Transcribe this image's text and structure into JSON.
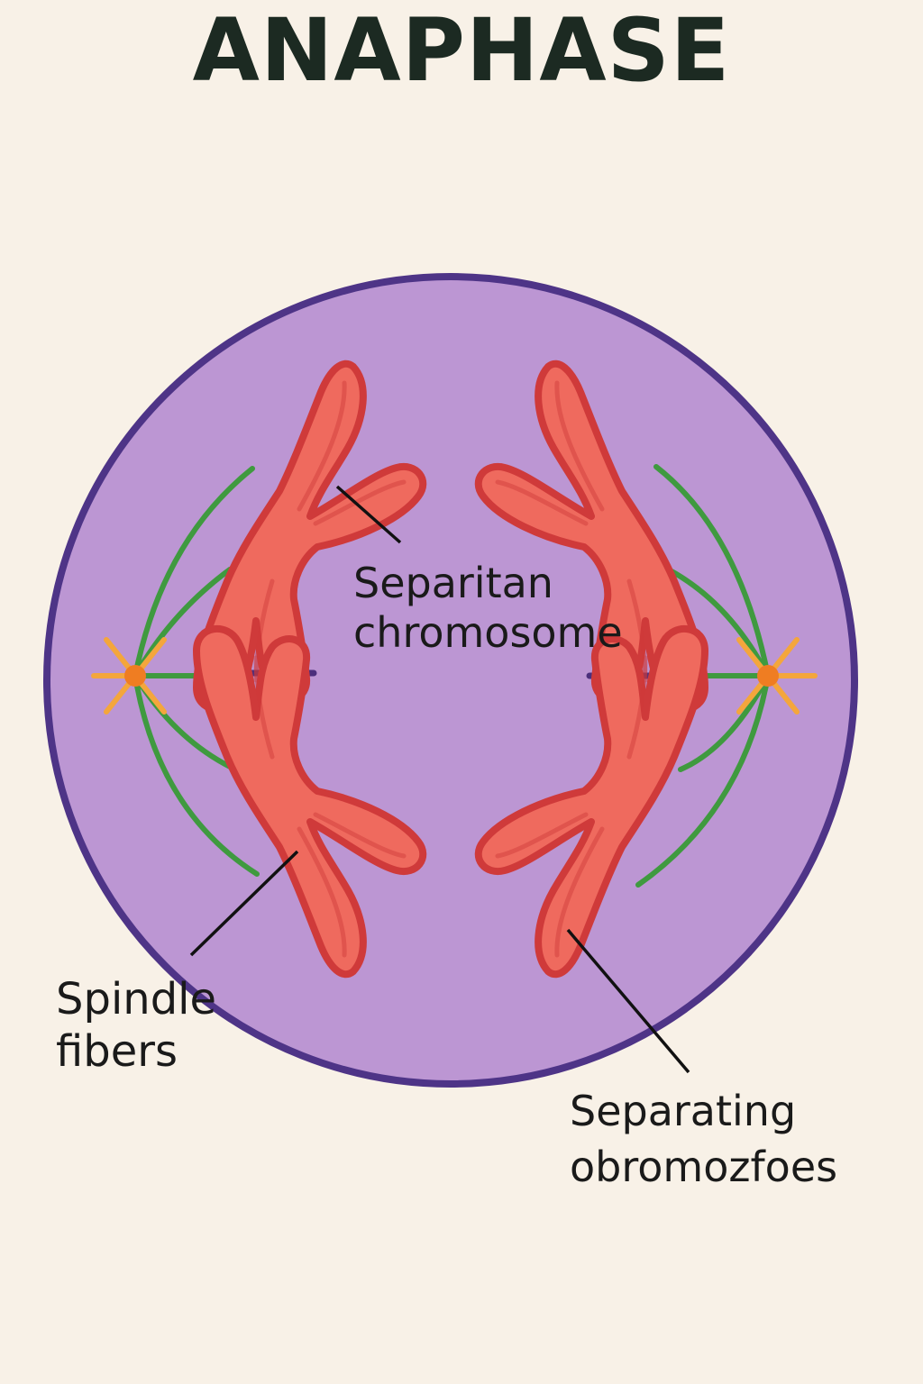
{
  "title": "ANAPHASE",
  "labels": {
    "center": {
      "line1": "Separitan",
      "line2": "chromosome"
    },
    "spindle": {
      "line1": "Spindle",
      "line2": "fibers"
    },
    "separating": {
      "line1": "Separating",
      "line2": "obromozfoes"
    }
  },
  "colors": {
    "background": "#f8f1e7",
    "cell_fill": "#bc96d3",
    "cell_border": "#4e3487",
    "chromosome_fill": "#ef6a5e",
    "chromosome_outline": "#cf3a3a",
    "spindle_fiber": "#3f9a3f",
    "centrosome": "#ef7d22",
    "aster": "#f4a63c",
    "equator_dash": "#4b2f7c",
    "leader_line": "#111111"
  }
}
